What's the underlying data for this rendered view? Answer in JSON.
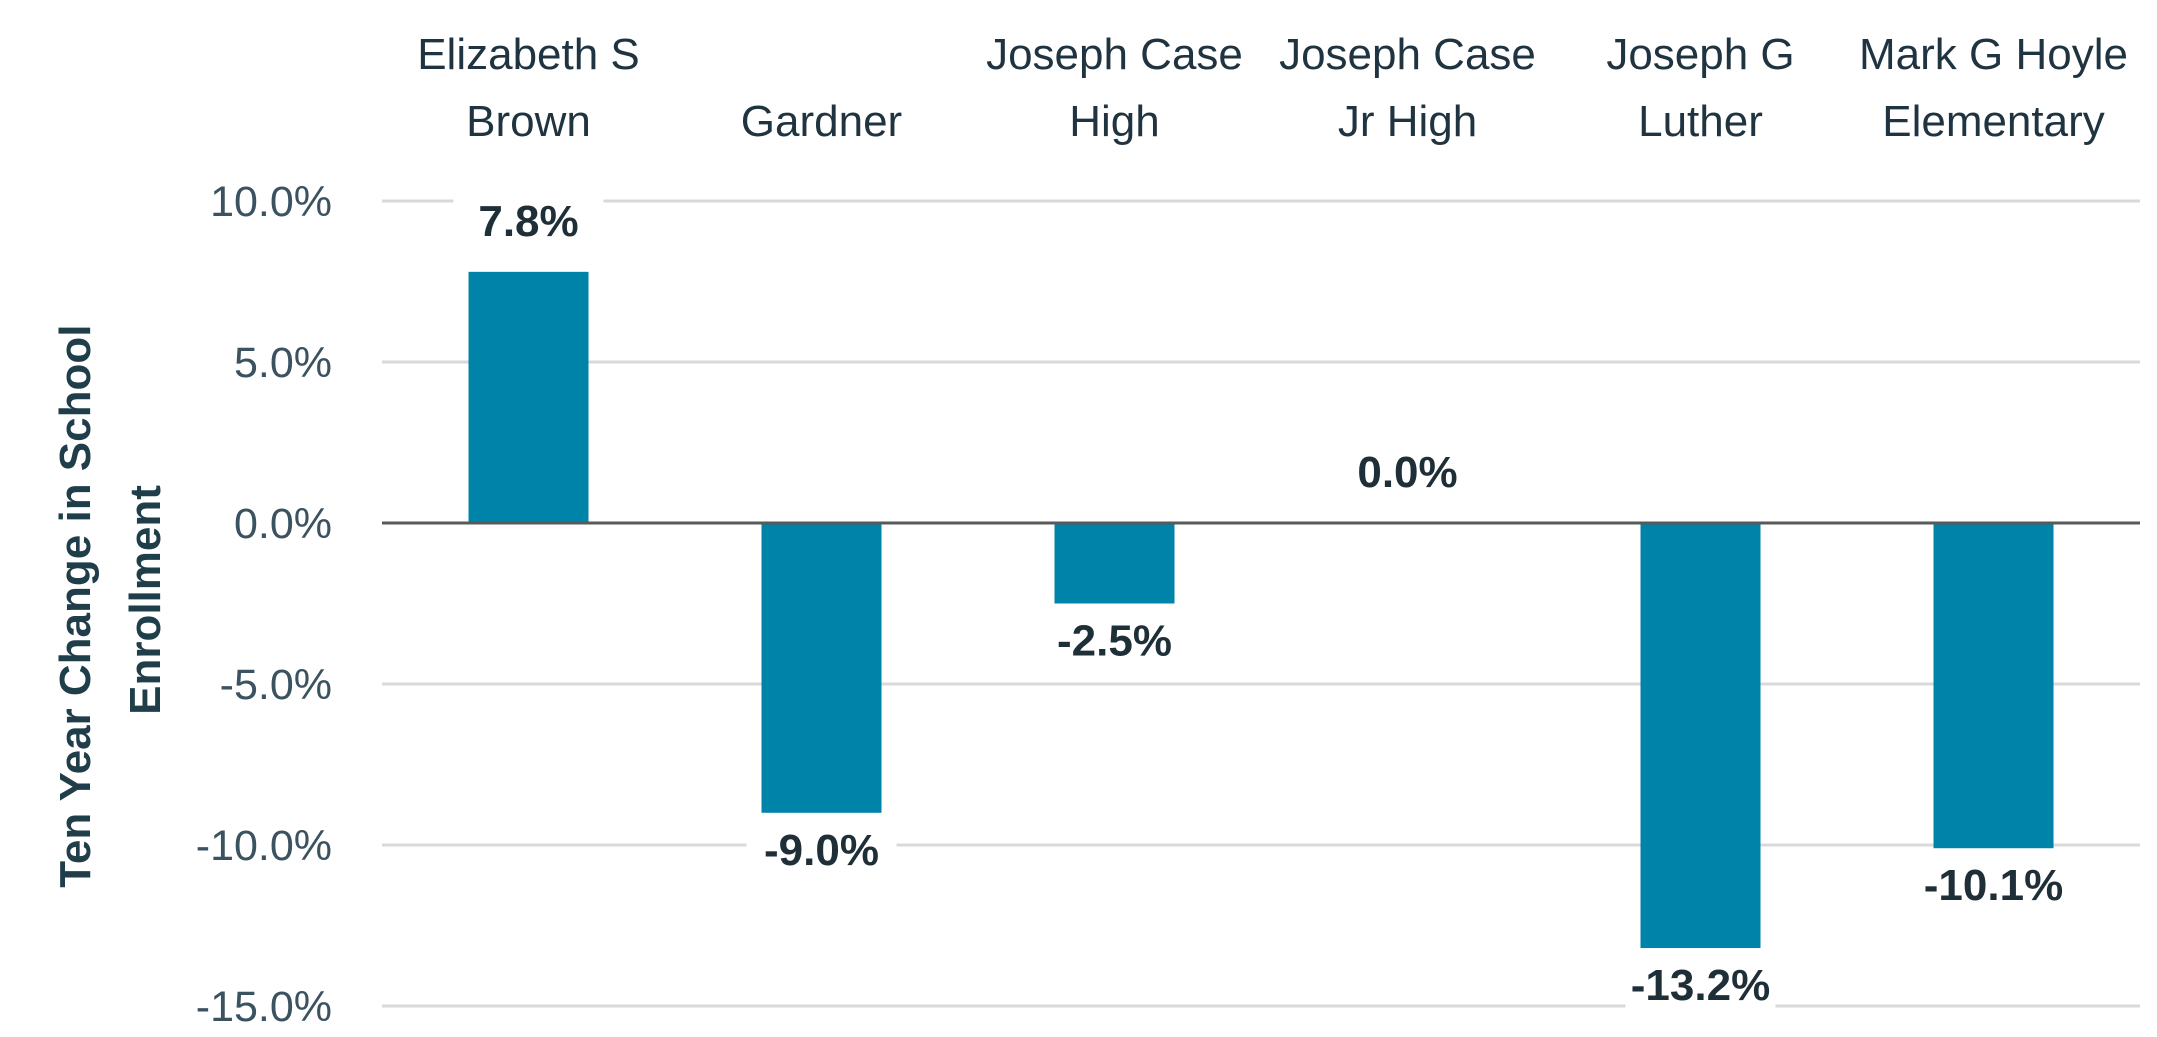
{
  "chart_data": {
    "type": "bar",
    "categories": [
      [
        "Elizabeth S",
        "Brown"
      ],
      [
        "Gardner"
      ],
      [
        "Joseph Case",
        "High"
      ],
      [
        "Joseph Case",
        "Jr High"
      ],
      [
        "Joseph G",
        "Luther"
      ],
      [
        "Mark G Hoyle",
        "Elementary"
      ]
    ],
    "values": [
      7.8,
      -9.0,
      -2.5,
      0.0,
      -13.2,
      -10.1
    ],
    "data_labels": [
      "7.8%",
      "-9.0%",
      "-2.5%",
      "0.0%",
      "-13.2%",
      "-10.1%"
    ],
    "title": "",
    "xlabel": "",
    "ylabel": [
      "Ten Year Change in School",
      "Enrollment"
    ],
    "ylim": [
      -15,
      10
    ],
    "yticks": [
      10,
      5,
      0,
      -5,
      -10,
      -15
    ],
    "ytick_labels": [
      "10.0%",
      "5.0%",
      "0.0%",
      "-5.0%",
      "-10.0%",
      "-15.0%"
    ],
    "grid": true,
    "category_labels_position": "top",
    "colors": {
      "bar": "#0083a9",
      "gridline": "#d9d9d9",
      "zero_line": "#595959"
    }
  }
}
